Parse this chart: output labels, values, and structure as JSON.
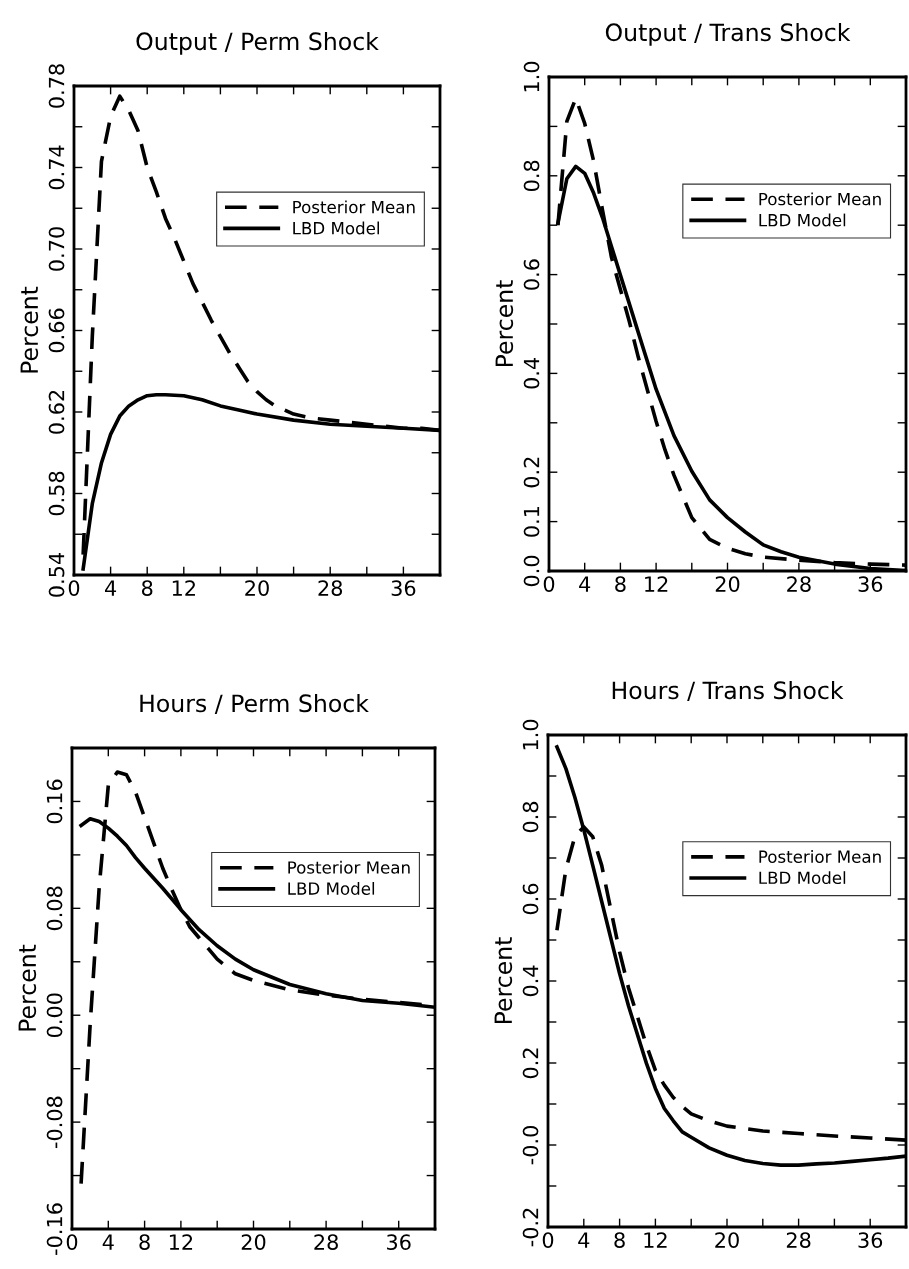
{
  "chart_data": [
    {
      "type": "line",
      "title": "Output / Perm Shock",
      "ylabel": "Percent",
      "legend": "top right",
      "xlim": [
        0,
        40
      ],
      "xticks": [
        0,
        4,
        8,
        12,
        {
          "value": 16,
          "label": null
        },
        20,
        {
          "value": 24,
          "label": null
        },
        28,
        {
          "value": 32,
          "label": null
        },
        36
      ],
      "ylim": [
        0.54,
        0.78
      ],
      "yticks": [
        {
          "value": 0.54,
          "label": "0.54"
        },
        {
          "value": 0.56,
          "label": null
        },
        {
          "value": 0.58,
          "label": "0.58"
        },
        {
          "value": 0.6,
          "label": null
        },
        {
          "value": 0.62,
          "label": "0.62"
        },
        {
          "value": 0.64,
          "label": null
        },
        {
          "value": 0.66,
          "label": "0.66"
        },
        {
          "value": 0.68,
          "label": null
        },
        {
          "value": 0.7,
          "label": "0.70"
        },
        {
          "value": 0.72,
          "label": null
        },
        {
          "value": 0.74,
          "label": "0.74"
        },
        {
          "value": 0.76,
          "label": null
        },
        {
          "value": 0.78,
          "label": "0.78"
        }
      ],
      "series": [
        {
          "name": "Posterior Mean",
          "color": "#000000",
          "line_style": "dashed",
          "x": [
            1,
            2,
            3,
            4,
            5,
            6,
            7,
            8,
            9,
            10,
            11,
            12,
            13,
            14,
            15,
            16,
            17,
            18,
            19,
            20,
            21,
            22,
            24,
            26,
            28,
            30,
            32,
            34,
            36,
            38,
            40
          ],
          "values": [
            0.55,
            0.657,
            0.743,
            0.765,
            0.775,
            0.768,
            0.758,
            0.74,
            0.728,
            0.715,
            0.705,
            0.694,
            0.683,
            0.674,
            0.665,
            0.657,
            0.649,
            0.642,
            0.635,
            0.63,
            0.626,
            0.623,
            0.619,
            0.617,
            0.616,
            0.615,
            0.614,
            0.613,
            0.612,
            0.612,
            0.611
          ]
        },
        {
          "name": "LBD Model",
          "color": "#000000",
          "line_style": "solid",
          "x": [
            1,
            2,
            3,
            4,
            5,
            6,
            7,
            8,
            9,
            10,
            12,
            14,
            16,
            18,
            20,
            24,
            28,
            32,
            36,
            40
          ],
          "values": [
            0.543,
            0.575,
            0.595,
            0.609,
            0.618,
            0.623,
            0.626,
            0.628,
            0.6285,
            0.6285,
            0.628,
            0.626,
            0.623,
            0.621,
            0.619,
            0.616,
            0.614,
            0.613,
            0.612,
            0.611
          ]
        }
      ]
    },
    {
      "type": "line",
      "title": "Output / Trans Shock",
      "ylabel": "Percent",
      "legend": "top right",
      "xlim": [
        0,
        40
      ],
      "xticks": [
        0,
        4,
        8,
        12,
        {
          "value": 16,
          "label": null
        },
        20,
        {
          "value": 24,
          "label": null
        },
        28,
        {
          "value": 32,
          "label": null
        },
        36
      ],
      "ylim": [
        0,
        1.0
      ],
      "yticks": [
        {
          "value": 0,
          "label": "0.0"
        },
        {
          "value": 0.1,
          "label": "0.1"
        },
        {
          "value": 0.2,
          "label": "0.2"
        },
        {
          "value": 0.3,
          "label": null
        },
        {
          "value": 0.4,
          "label": "0.4"
        },
        {
          "value": 0.5,
          "label": null
        },
        {
          "value": 0.6,
          "label": "0.6"
        },
        {
          "value": 0.7,
          "label": null
        },
        {
          "value": 0.8,
          "label": "0.8"
        },
        {
          "value": 0.9,
          "label": null
        },
        {
          "value": 1.0,
          "label": "1.0"
        }
      ],
      "series": [
        {
          "name": "Posterior Mean",
          "color": "#000000",
          "line_style": "dashed",
          "x": [
            1,
            2,
            3,
            4,
            5,
            6,
            7,
            8,
            9,
            10,
            11,
            12,
            13,
            14,
            15,
            16,
            18,
            20,
            22,
            24,
            28,
            32,
            36,
            40
          ],
          "values": [
            0.7,
            0.91,
            0.957,
            0.906,
            0.83,
            0.73,
            0.635,
            0.57,
            0.505,
            0.433,
            0.368,
            0.303,
            0.245,
            0.194,
            0.151,
            0.108,
            0.064,
            0.046,
            0.035,
            0.028,
            0.022,
            0.017,
            0.014,
            0.012
          ]
        },
        {
          "name": "LBD Model",
          "color": "#000000",
          "line_style": "solid",
          "x": [
            1,
            2,
            3,
            4,
            5,
            6,
            7,
            8,
            10,
            12,
            14,
            16,
            18,
            20,
            22,
            24,
            26,
            28,
            32,
            36,
            40
          ],
          "values": [
            0.704,
            0.794,
            0.819,
            0.805,
            0.765,
            0.715,
            0.657,
            0.599,
            0.483,
            0.368,
            0.274,
            0.202,
            0.144,
            0.108,
            0.079,
            0.053,
            0.039,
            0.028,
            0.014,
            0.005,
            0.001
          ]
        }
      ]
    },
    {
      "type": "line",
      "title": "Hours / Perm Shock",
      "ylabel": "Percent",
      "legend": "top right",
      "xlim": [
        0,
        40
      ],
      "xticks": [
        0,
        4,
        8,
        12,
        {
          "value": 16,
          "label": null
        },
        20,
        {
          "value": 24,
          "label": null
        },
        28,
        {
          "value": 32,
          "label": null
        },
        36
      ],
      "ylim": [
        -0.16,
        0.2
      ],
      "yticks": [
        {
          "value": -0.16,
          "label": "-0.16"
        },
        {
          "value": -0.12,
          "label": null
        },
        {
          "value": -0.08,
          "label": "-0.08"
        },
        {
          "value": -0.04,
          "label": null
        },
        {
          "value": 0,
          "label": "0.00"
        },
        {
          "value": 0.04,
          "label": null
        },
        {
          "value": 0.08,
          "label": "0.08"
        },
        {
          "value": 0.12,
          "label": null
        },
        {
          "value": 0.16,
          "label": "0.16"
        },
        {
          "value": 0.2,
          "label": null
        }
      ],
      "series": [
        {
          "name": "Posterior Mean",
          "color": "#000000",
          "line_style": "dashed",
          "x": [
            1,
            2,
            3,
            4,
            5,
            6,
            7,
            8,
            9,
            10,
            11,
            12,
            13,
            14,
            15,
            16,
            18,
            20,
            24,
            28,
            32,
            36,
            40
          ],
          "values": [
            -0.126,
            -0.007,
            0.096,
            0.172,
            0.182,
            0.18,
            0.167,
            0.148,
            0.129,
            0.11,
            0.094,
            0.079,
            0.066,
            0.058,
            0.05,
            0.042,
            0.031,
            0.026,
            0.019,
            0.015,
            0.012,
            0.0095,
            0.007
          ]
        },
        {
          "name": "LBD Model",
          "color": "#000000",
          "line_style": "solid",
          "x": [
            1,
            2,
            3,
            4,
            5,
            6,
            7,
            8,
            10,
            12,
            14,
            16,
            18,
            20,
            24,
            28,
            32,
            36,
            40
          ],
          "values": [
            0.142,
            0.147,
            0.145,
            0.14,
            0.134,
            0.127,
            0.118,
            0.11,
            0.095,
            0.079,
            0.064,
            0.052,
            0.042,
            0.034,
            0.023,
            0.016,
            0.011,
            0.009,
            0.006
          ]
        }
      ]
    },
    {
      "type": "line",
      "title": "Hours / Trans Shock",
      "ylabel": "Percent",
      "legend": "top right",
      "xlim": [
        0,
        40
      ],
      "xticks": [
        0,
        4,
        8,
        12,
        {
          "value": 16,
          "label": null
        },
        20,
        {
          "value": 24,
          "label": null
        },
        28,
        {
          "value": 32,
          "label": null
        },
        36
      ],
      "ylim": [
        -0.2,
        1.0
      ],
      "yticks": [
        {
          "value": -0.2,
          "label": "-0.2"
        },
        {
          "value": -0.1,
          "label": null
        },
        {
          "value": 0,
          "label": "-0.0"
        },
        {
          "value": 0.1,
          "label": null
        },
        {
          "value": 0.2,
          "label": "0.2"
        },
        {
          "value": 0.3,
          "label": null
        },
        {
          "value": 0.4,
          "label": "0.4"
        },
        {
          "value": 0.5,
          "label": null
        },
        {
          "value": 0.6,
          "label": "0.6"
        },
        {
          "value": 0.7,
          "label": null
        },
        {
          "value": 0.8,
          "label": "0.8"
        },
        {
          "value": 0.9,
          "label": null
        },
        {
          "value": 1.0,
          "label": "1.0"
        }
      ],
      "series": [
        {
          "name": "Posterior Mean",
          "color": "#000000",
          "line_style": "dashed",
          "x": [
            1,
            2,
            3,
            4,
            5,
            6,
            7,
            8,
            9,
            10,
            11,
            12,
            13,
            14,
            15,
            16,
            18,
            20,
            24,
            28,
            32,
            36,
            40
          ],
          "values": [
            0.524,
            0.673,
            0.752,
            0.776,
            0.752,
            0.682,
            0.576,
            0.471,
            0.383,
            0.313,
            0.243,
            0.182,
            0.146,
            0.116,
            0.094,
            0.076,
            0.059,
            0.046,
            0.034,
            0.028,
            0.022,
            0.017,
            0.012
          ]
        },
        {
          "name": "LBD Model",
          "color": "#000000",
          "line_style": "solid",
          "x": [
            1,
            2,
            3,
            4,
            5,
            6,
            7,
            8,
            9,
            10,
            11,
            12,
            13,
            14,
            15,
            16,
            18,
            20,
            22,
            24,
            26,
            28,
            30,
            32,
            34,
            36,
            38,
            40
          ],
          "values": [
            0.971,
            0.918,
            0.848,
            0.769,
            0.682,
            0.594,
            0.506,
            0.418,
            0.339,
            0.269,
            0.199,
            0.138,
            0.089,
            0.059,
            0.032,
            0.019,
            -0.007,
            -0.025,
            -0.038,
            -0.045,
            -0.049,
            -0.049,
            -0.046,
            -0.044,
            -0.04,
            -0.036,
            -0.032,
            -0.027
          ]
        }
      ]
    }
  ]
}
